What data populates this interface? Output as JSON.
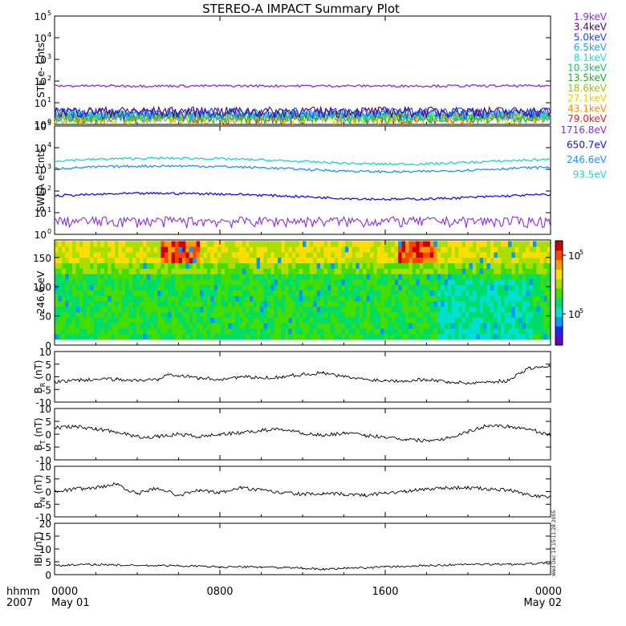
{
  "title": "STEREO-A IMPACT Summary Plot",
  "stamp": "Wed Dec 14 15:11:28 2005",
  "colors": {
    "colorbar": [
      "#6a00c8",
      "#2222ff",
      "#0099ff",
      "#00e0d0",
      "#00dd66",
      "#44dd00",
      "#aadd00",
      "#ffdd00",
      "#ff9900",
      "#ff4400",
      "#cc0000"
    ]
  },
  "xaxis": {
    "corner_top": "hhmm",
    "corner_bottom": "2007",
    "ticks": [
      {
        "time": "0000",
        "date": "May 01",
        "hour": 0
      },
      {
        "time": "0800",
        "date": "",
        "hour": 8
      },
      {
        "time": "1600",
        "date": "",
        "hour": 16
      },
      {
        "time": "0000",
        "date": "May 02",
        "hour": 24
      }
    ]
  },
  "chart_data": [
    {
      "id": "ste",
      "type": "line",
      "ylabel": "STE e- Cnts",
      "yscale": "log",
      "ylim_exp": [
        0,
        5
      ],
      "ytick_exps": [
        "0",
        "1",
        "2",
        "3",
        "4",
        "5"
      ],
      "legend_position": "right",
      "series": [
        {
          "name": "1.9keV",
          "color": "#8a2be2",
          "level": 60
        },
        {
          "name": "3.4keV",
          "color": "#4b0082",
          "level": 2
        },
        {
          "name": "5.0keV",
          "color": "#1f3fff",
          "level": 1.8
        },
        {
          "name": "6.5keV",
          "color": "#1f9fff",
          "level": 1.5
        },
        {
          "name": "8.1keV",
          "color": "#20d8d8",
          "level": 1.3
        },
        {
          "name": "10.3keV",
          "color": "#20c060",
          "level": 1.2
        },
        {
          "name": "13.5keV",
          "color": "#20b020",
          "level": 1.1
        },
        {
          "name": "18.6keV",
          "color": "#a0c000",
          "level": 1.05
        },
        {
          "name": "27.1keV",
          "color": "#e8d000",
          "level": 1.02
        },
        {
          "name": "43.1keV",
          "color": "#ff8c00",
          "level": 1.01
        },
        {
          "name": "79.0keV",
          "color": "#e02020",
          "level": 1.0
        }
      ]
    },
    {
      "id": "swea",
      "type": "line",
      "ylabel": "SWEA e- cnts",
      "yscale": "log",
      "ylim_exp": [
        0,
        5
      ],
      "ytick_exps": [
        "0",
        "1",
        "2",
        "3",
        "4",
        "5"
      ],
      "legend_position": "right",
      "series": [
        {
          "name": "1716.8eV",
          "color": "#8a2be2",
          "level": 2
        },
        {
          "name": "650.7eV",
          "color": "#1010e0",
          "level": 60
        },
        {
          "name": "246.6eV",
          "color": "#1e90ff",
          "level": 1100
        },
        {
          "name": "93.5eV",
          "color": "#20d0d0",
          "level": 2500
        }
      ]
    },
    {
      "id": "pad",
      "type": "heatmap",
      "ylabel": "246.6 eV",
      "ylim": [
        0,
        180
      ],
      "yticks": [
        "0",
        "50",
        "100",
        "150"
      ],
      "colorbar_tick_exps": [
        "5",
        "5"
      ]
    },
    {
      "id": "br",
      "type": "line",
      "ylabel_main": "B",
      "ylabel_sub": "R",
      "ylabel_unit": "(nT)",
      "ylim": [
        -10,
        10
      ],
      "yticks": [
        "10",
        "5",
        "0",
        "-5",
        "-10"
      ],
      "x_hours": [
        0,
        1,
        2,
        3,
        4,
        5,
        5.5,
        6,
        7,
        8,
        9,
        10,
        11,
        12,
        13,
        14,
        15,
        16,
        17,
        18,
        19,
        20,
        21,
        22,
        22.6,
        23,
        24
      ],
      "values": [
        -2,
        -1.5,
        -1,
        -1,
        -1.5,
        -1,
        1.5,
        0.5,
        -0.5,
        -1,
        0,
        -0.5,
        0,
        1,
        1.5,
        0,
        -1,
        -1.5,
        -1.5,
        -1,
        -2,
        -2.5,
        -2,
        -1.5,
        2,
        3.5,
        4
      ]
    },
    {
      "id": "bt",
      "type": "line",
      "ylabel_main": "B",
      "ylabel_sub": "T",
      "ylabel_unit": "(nT)",
      "ylim": [
        -10,
        10
      ],
      "yticks": [
        "10",
        "5",
        "0",
        "-5",
        "-10"
      ],
      "x_hours": [
        0,
        1,
        2,
        3,
        4,
        5,
        6,
        7,
        8,
        9,
        10,
        11,
        12,
        13,
        14,
        15,
        16,
        17,
        18,
        19,
        20,
        21,
        22,
        23,
        24
      ],
      "values": [
        2.5,
        3,
        2,
        1,
        -1,
        -1,
        0,
        -1,
        0,
        0.5,
        1.5,
        2,
        0.5,
        -0.5,
        0.5,
        -0.5,
        -1,
        -2,
        -2.5,
        -1.5,
        1,
        3.5,
        3,
        2,
        -0.5
      ]
    },
    {
      "id": "bn",
      "type": "line",
      "ylabel_main": "B",
      "ylabel_sub": "N",
      "ylabel_unit": "(nT)",
      "ylim": [
        -10,
        10
      ],
      "yticks": [
        "10",
        "5",
        "0",
        "-5",
        "-10"
      ],
      "x_hours": [
        0,
        1,
        2,
        3,
        4,
        5,
        6,
        7,
        8,
        9,
        10,
        11,
        12,
        13,
        14,
        15,
        16,
        17,
        18,
        19,
        20,
        21,
        22,
        23,
        24
      ],
      "values": [
        0,
        1,
        1.5,
        3,
        -1,
        1.5,
        -1.5,
        0.5,
        -0.5,
        1.5,
        0.5,
        -0.5,
        -1,
        -1,
        -1,
        -1.5,
        -0.5,
        0,
        1,
        1.5,
        1.5,
        1,
        0.5,
        -1.5,
        -2
      ]
    },
    {
      "id": "bmag",
      "type": "line",
      "ylabel_main": "IBI",
      "ylabel_sub": "",
      "ylabel_unit": "(nT)",
      "ylim": [
        0,
        20
      ],
      "yticks": [
        "20",
        "15",
        "10",
        "5",
        "0"
      ],
      "x_hours": [
        0,
        2,
        4,
        6,
        8,
        10,
        12,
        13,
        14,
        16,
        18,
        20,
        22,
        24
      ],
      "values": [
        3.5,
        4,
        3.5,
        3.5,
        3,
        3,
        2.5,
        2,
        2.5,
        3,
        3.5,
        4,
        4,
        4.5
      ]
    }
  ]
}
